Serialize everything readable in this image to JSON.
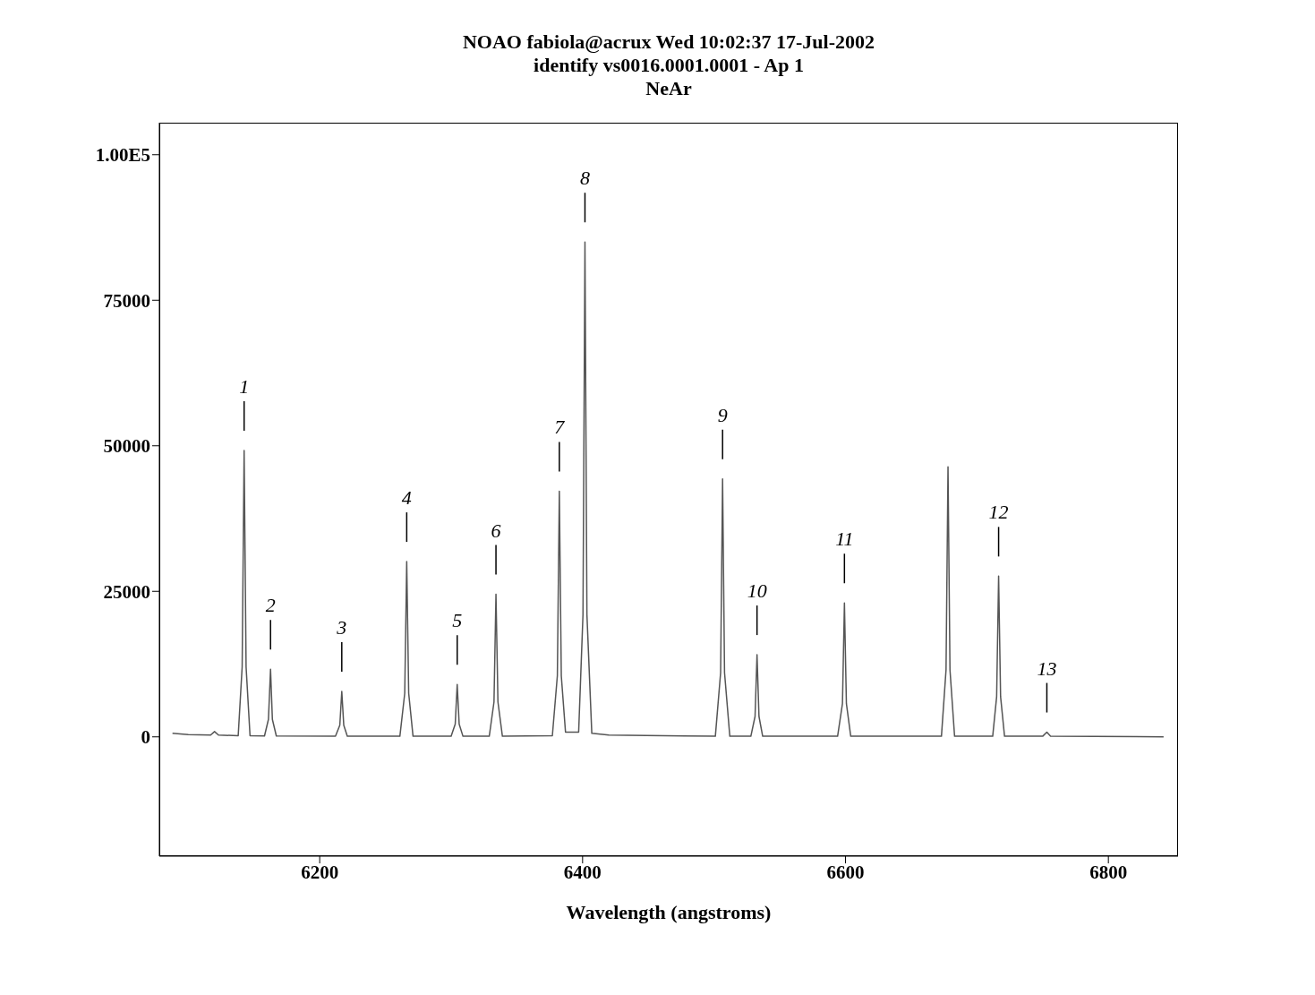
{
  "chart_data": {
    "type": "line",
    "title": "NOAO fabiola@acrux Wed 10:02:37 17-Jul-2002",
    "subtitle": "identify vs0016.0001.0001 - Ap 1",
    "xlabel": "Wavelength (angstroms)",
    "xlim": [
      6078,
      6853
    ],
    "xticks": [
      6200,
      6400,
      6600,
      6800
    ],
    "ylim": [
      -20500,
      105500
    ],
    "yticks": [
      0,
      25000,
      50000,
      75000,
      {
        "value": 100000,
        "label": "1.00E5"
      }
    ],
    "x": [
      6088,
      6100,
      6117,
      6120,
      6123,
      6138,
      6141,
      6142.5,
      6144,
      6147,
      6158,
      6161,
      6162.6,
      6164,
      6167,
      6212,
      6215.3,
      6216.8,
      6218.3,
      6221,
      6261,
      6264.7,
      6266.2,
      6267.7,
      6271,
      6300,
      6303.1,
      6304.6,
      6306.1,
      6309,
      6329,
      6332.6,
      6334.1,
      6335.6,
      6339,
      6377,
      6380.8,
      6382.3,
      6383.8,
      6387,
      6397,
      6400.3,
      6401.8,
      6403.3,
      6407,
      6420,
      6501,
      6505,
      6506.5,
      6508,
      6512,
      6528,
      6531.2,
      6532.7,
      6534.2,
      6537,
      6594,
      6597.7,
      6599.2,
      6600.7,
      6604,
      6673,
      6676.5,
      6678,
      6679.5,
      6683,
      6712,
      6715,
      6716.5,
      6718,
      6721,
      6750,
      6753.2,
      6756,
      6842
    ],
    "series": [
      {
        "color": "#555555",
        "values": [
          600,
          400,
          300,
          900,
          300,
          200,
          12000,
          49200,
          12000,
          200,
          150,
          3000,
          11600,
          3000,
          150,
          100,
          2000,
          7800,
          2000,
          100,
          100,
          7500,
          30100,
          7500,
          100,
          100,
          2200,
          9000,
          2200,
          100,
          100,
          6000,
          24500,
          6000,
          100,
          200,
          10500,
          42200,
          10500,
          800,
          800,
          21000,
          85000,
          21000,
          600,
          300,
          100,
          11000,
          44300,
          11000,
          100,
          100,
          3500,
          14100,
          3500,
          100,
          100,
          5700,
          23000,
          5700,
          100,
          100,
          11500,
          46400,
          11500,
          100,
          100,
          6900,
          27600,
          6900,
          100,
          100,
          800,
          100,
          0
        ]
      }
    ],
    "annotations": [
      "NeAr",
      {
        "text": "1",
        "x": 6142.5,
        "y": 49200
      },
      {
        "text": "2",
        "x": 6162.6,
        "y": 11600
      },
      {
        "text": "3",
        "x": 6216.8,
        "y": 7800
      },
      {
        "text": "4",
        "x": 6266.2,
        "y": 30100
      },
      {
        "text": "5",
        "x": 6304.6,
        "y": 9000
      },
      {
        "text": "6",
        "x": 6334.1,
        "y": 24500
      },
      {
        "text": "7",
        "x": 6382.3,
        "y": 42200
      },
      {
        "text": "8",
        "x": 6401.8,
        "y": 85000
      },
      {
        "text": "9",
        "x": 6506.5,
        "y": 44300
      },
      {
        "text": "10",
        "x": 6532.7,
        "y": 14100
      },
      {
        "text": "11",
        "x": 6599.2,
        "y": 23000
      },
      {
        "text": "12",
        "x": 6716.5,
        "y": 27600
      },
      {
        "text": "13",
        "x": 6753.2,
        "y": 800
      }
    ]
  }
}
